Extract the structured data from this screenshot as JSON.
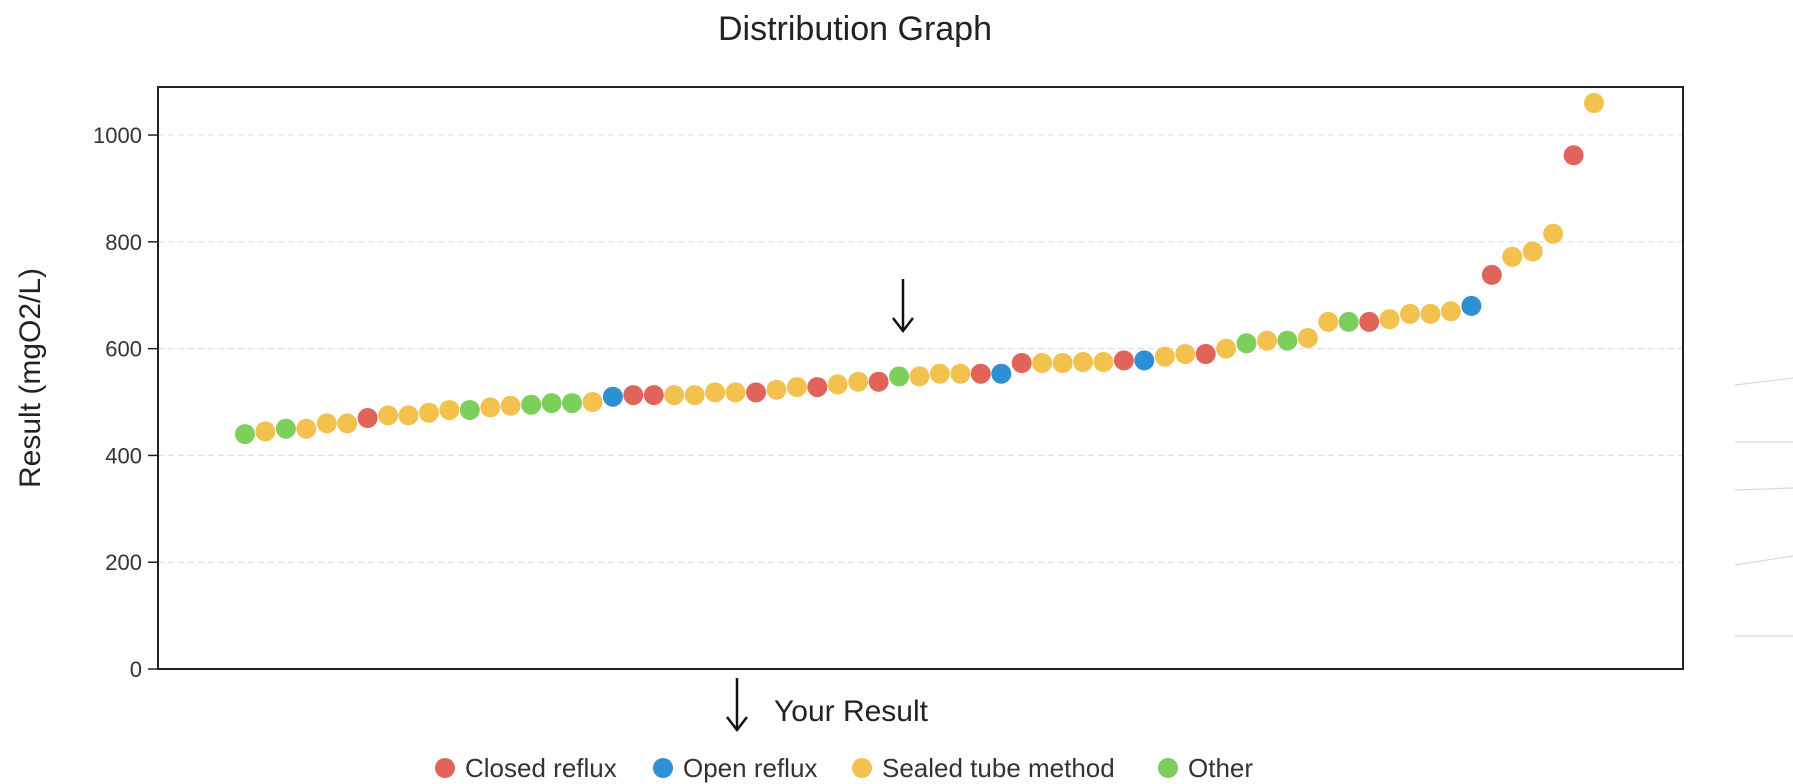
{
  "chart_data": {
    "type": "scatter",
    "title": "Distribution Graph",
    "xlabel": "",
    "ylabel": "Result (mgO2/L)",
    "ylim": [
      0,
      1090
    ],
    "yticks": [
      0,
      200,
      400,
      600,
      800,
      1000
    ],
    "grid": true,
    "marker_label": "Your Result",
    "marker_value": 545,
    "legend_position": "bottom",
    "categories": [
      {
        "name": "Closed reflux",
        "color": "#e0645a"
      },
      {
        "name": "Open reflux",
        "color": "#2f8fd4"
      },
      {
        "name": "Sealed tube method",
        "color": "#f2c14e"
      },
      {
        "name": "Other",
        "color": "#7ccf5b"
      }
    ],
    "points": [
      {
        "v": 440,
        "c": "Other"
      },
      {
        "v": 445,
        "c": "Sealed tube method"
      },
      {
        "v": 450,
        "c": "Other"
      },
      {
        "v": 450,
        "c": "Sealed tube method"
      },
      {
        "v": 460,
        "c": "Sealed tube method"
      },
      {
        "v": 460,
        "c": "Sealed tube method"
      },
      {
        "v": 470,
        "c": "Closed reflux"
      },
      {
        "v": 475,
        "c": "Sealed tube method"
      },
      {
        "v": 475,
        "c": "Sealed tube method"
      },
      {
        "v": 480,
        "c": "Sealed tube method"
      },
      {
        "v": 485,
        "c": "Sealed tube method"
      },
      {
        "v": 485,
        "c": "Other"
      },
      {
        "v": 490,
        "c": "Sealed tube method"
      },
      {
        "v": 493,
        "c": "Sealed tube method"
      },
      {
        "v": 495,
        "c": "Other"
      },
      {
        "v": 498,
        "c": "Other"
      },
      {
        "v": 498,
        "c": "Other"
      },
      {
        "v": 500,
        "c": "Sealed tube method"
      },
      {
        "v": 510,
        "c": "Open reflux"
      },
      {
        "v": 513,
        "c": "Closed reflux"
      },
      {
        "v": 513,
        "c": "Closed reflux"
      },
      {
        "v": 513,
        "c": "Sealed tube method"
      },
      {
        "v": 513,
        "c": "Sealed tube method"
      },
      {
        "v": 518,
        "c": "Sealed tube method"
      },
      {
        "v": 518,
        "c": "Sealed tube method"
      },
      {
        "v": 518,
        "c": "Closed reflux"
      },
      {
        "v": 523,
        "c": "Sealed tube method"
      },
      {
        "v": 528,
        "c": "Sealed tube method"
      },
      {
        "v": 528,
        "c": "Closed reflux"
      },
      {
        "v": 533,
        "c": "Sealed tube method"
      },
      {
        "v": 538,
        "c": "Sealed tube method"
      },
      {
        "v": 538,
        "c": "Closed reflux"
      },
      {
        "v": 548,
        "c": "Other"
      },
      {
        "v": 548,
        "c": "Sealed tube method"
      },
      {
        "v": 553,
        "c": "Sealed tube method"
      },
      {
        "v": 553,
        "c": "Sealed tube method"
      },
      {
        "v": 553,
        "c": "Closed reflux"
      },
      {
        "v": 553,
        "c": "Open reflux"
      },
      {
        "v": 573,
        "c": "Closed reflux"
      },
      {
        "v": 573,
        "c": "Sealed tube method"
      },
      {
        "v": 573,
        "c": "Sealed tube method"
      },
      {
        "v": 575,
        "c": "Sealed tube method"
      },
      {
        "v": 575,
        "c": "Sealed tube method"
      },
      {
        "v": 578,
        "c": "Closed reflux"
      },
      {
        "v": 578,
        "c": "Open reflux"
      },
      {
        "v": 585,
        "c": "Sealed tube method"
      },
      {
        "v": 590,
        "c": "Sealed tube method"
      },
      {
        "v": 590,
        "c": "Closed reflux"
      },
      {
        "v": 600,
        "c": "Sealed tube method"
      },
      {
        "v": 610,
        "c": "Other"
      },
      {
        "v": 615,
        "c": "Sealed tube method"
      },
      {
        "v": 615,
        "c": "Other"
      },
      {
        "v": 620,
        "c": "Sealed tube method"
      },
      {
        "v": 650,
        "c": "Sealed tube method"
      },
      {
        "v": 650,
        "c": "Other"
      },
      {
        "v": 650,
        "c": "Closed reflux"
      },
      {
        "v": 655,
        "c": "Sealed tube method"
      },
      {
        "v": 665,
        "c": "Sealed tube method"
      },
      {
        "v": 665,
        "c": "Sealed tube method"
      },
      {
        "v": 670,
        "c": "Sealed tube method"
      },
      {
        "v": 680,
        "c": "Open reflux"
      },
      {
        "v": 738,
        "c": "Closed reflux"
      },
      {
        "v": 772,
        "c": "Sealed tube method"
      },
      {
        "v": 782,
        "c": "Sealed tube method"
      },
      {
        "v": 815,
        "c": "Sealed tube method"
      },
      {
        "v": 962,
        "c": "Closed reflux"
      },
      {
        "v": 1060,
        "c": "Sealed tube method"
      }
    ]
  }
}
